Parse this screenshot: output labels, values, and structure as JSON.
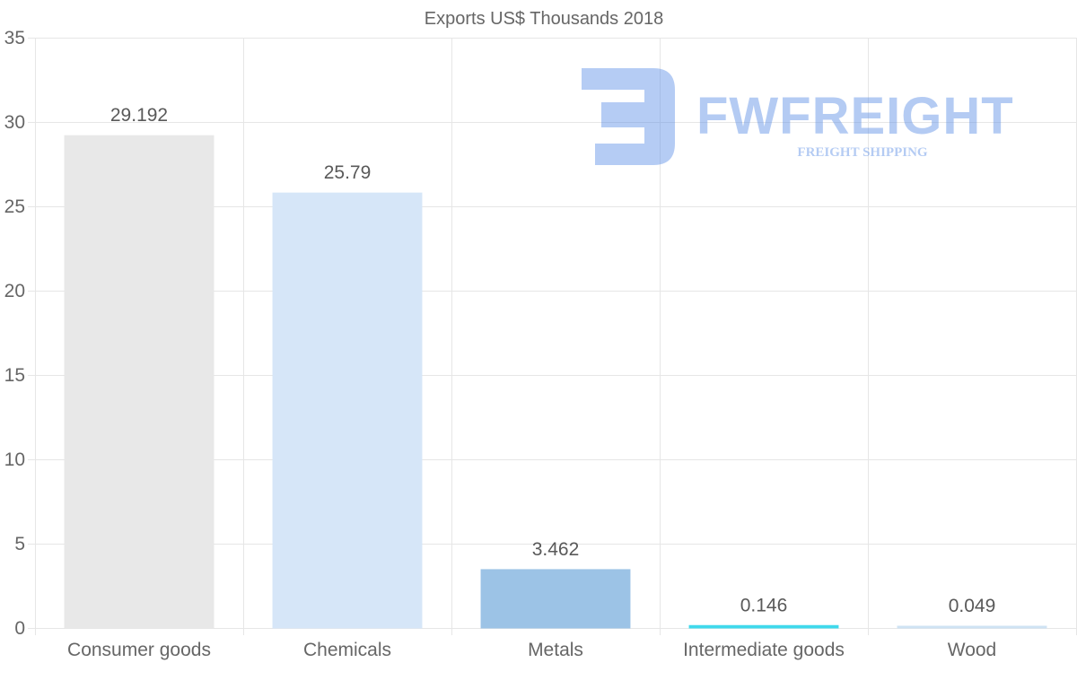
{
  "chart_data": {
    "type": "bar",
    "title": "Exports US$ Thousands 2018",
    "xlabel": "",
    "ylabel": "",
    "categories": [
      "Consumer goods",
      "Chemicals",
      "Metals",
      "Intermediate goods",
      "Wood"
    ],
    "values": [
      29.192,
      25.79,
      3.462,
      0.146,
      0.049
    ],
    "value_labels": [
      "29.192",
      "25.79",
      "3.462",
      "0.146",
      "0.049"
    ],
    "bar_colors": [
      "#e8e8e8",
      "#d6e6f8",
      "#9cc3e6",
      "#3fd9ec",
      "#cfe3f3"
    ],
    "ylim": [
      0,
      35
    ],
    "yticks": [
      0,
      5,
      10,
      15,
      20,
      25,
      30,
      35
    ],
    "grid": true,
    "legend": "none"
  },
  "watermark": {
    "brand": "FWFREIGHT",
    "tagline": "FREIGHT SHIPPING",
    "color": "#5b8ee6"
  },
  "colors": {
    "grid": "#e6e6e6",
    "axis_text": "#666666",
    "label_text": "#595959"
  }
}
